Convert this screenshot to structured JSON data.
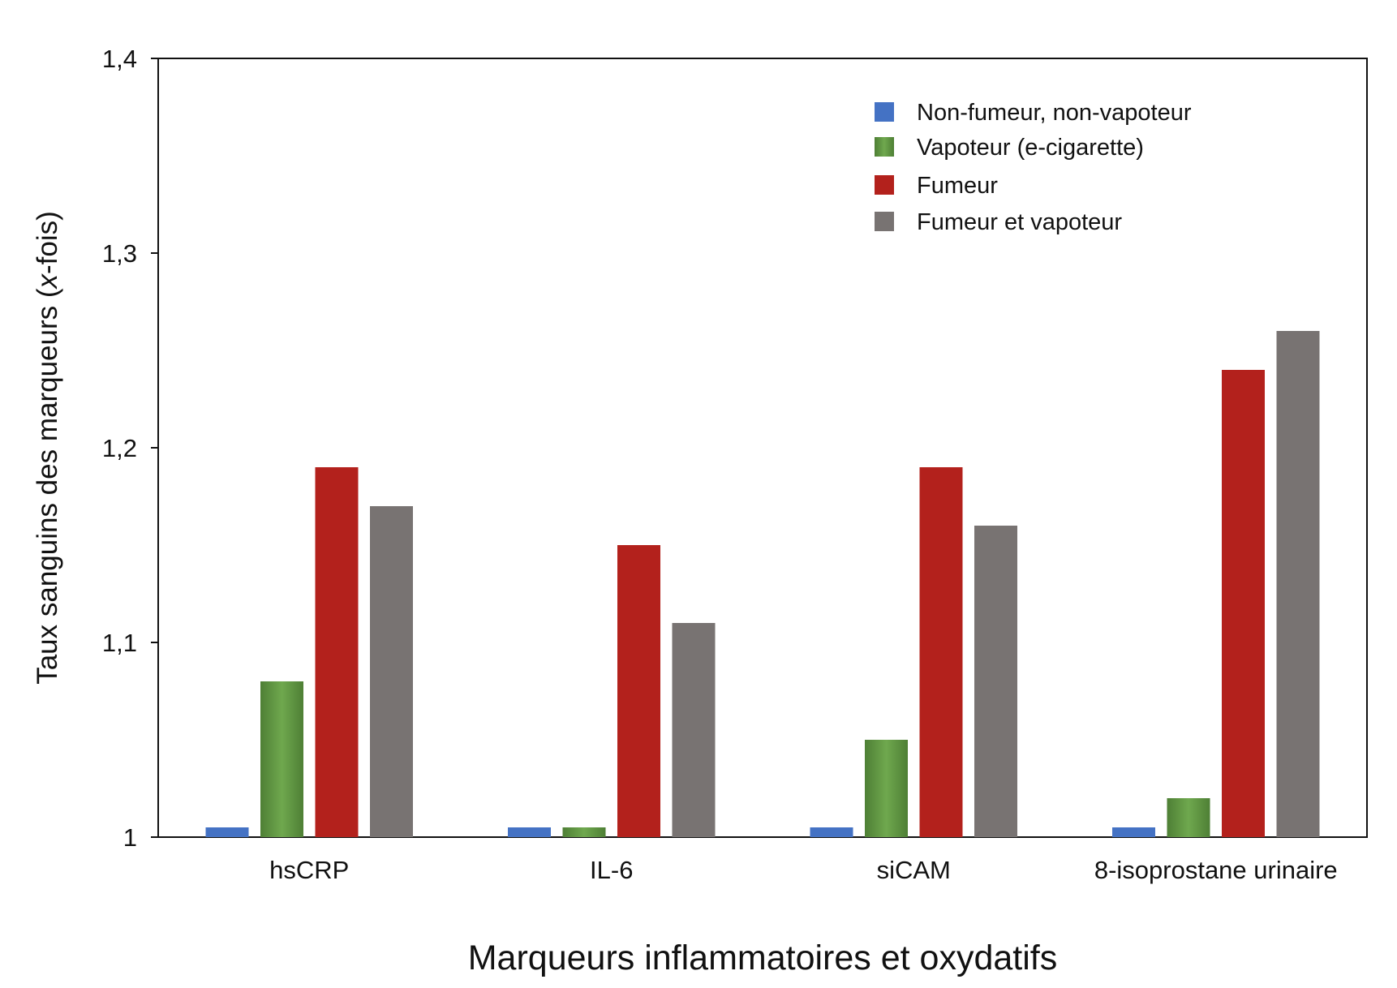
{
  "chart_data": {
    "type": "bar",
    "xlabel": "Marqueurs inflammatoires et oxydatifs",
    "ylabel_prefix": "Taux sanguins des marqueurs (",
    "ylabel_italic": "x",
    "ylabel_suffix": "-fois)",
    "categories": [
      "hsCRP",
      "IL-6",
      "siCAM",
      "8-isoprostane urinaire"
    ],
    "yticks": [
      "1",
      "1,1",
      "1,2",
      "1,3",
      "1,4"
    ],
    "ylim": [
      1,
      1.4
    ],
    "series": [
      {
        "name": "Non-fumeur, non-vapoteur",
        "color": "#4472C4",
        "values": [
          1.005,
          1.005,
          1.005,
          1.005
        ]
      },
      {
        "name": "Vapoteur (e-cigarette)",
        "color": "#5E9640",
        "values": [
          1.08,
          1.005,
          1.05,
          1.02
        ]
      },
      {
        "name": "Fumeur",
        "color": "#B3211C",
        "values": [
          1.19,
          1.15,
          1.19,
          1.24
        ]
      },
      {
        "name": "Fumeur et vapoteur",
        "color": "#787372",
        "values": [
          1.17,
          1.11,
          1.16,
          1.26
        ]
      }
    ],
    "legend_position": "top-right",
    "grid": false
  }
}
